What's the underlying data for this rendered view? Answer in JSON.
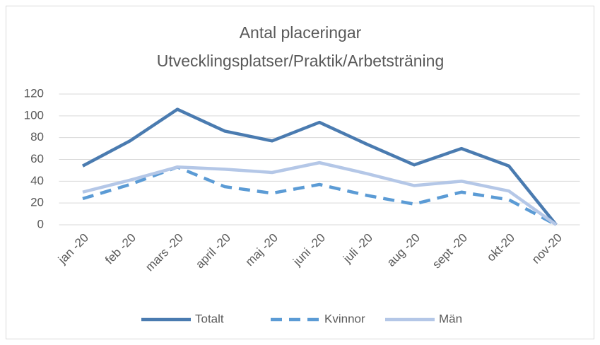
{
  "chart_data": {
    "type": "line",
    "title": [
      "Antal placeringar",
      "Utvecklingsplatser/Praktik/Arbetsträning"
    ],
    "categories": [
      "jan -20",
      "feb -20",
      "mars -20",
      "april -20",
      "maj -20",
      "juni -20",
      "juli -20",
      "aug -20",
      "sept -20",
      "okt-20",
      "nov-20"
    ],
    "series": [
      {
        "name": "Totalt",
        "color": "#4a7bb0",
        "dashed": false,
        "values": [
          54,
          77,
          106,
          86,
          77,
          94,
          74,
          55,
          70,
          54,
          0
        ]
      },
      {
        "name": "Kvinnor",
        "color": "#5b9bd5",
        "dashed": true,
        "values": [
          24,
          37,
          53,
          35,
          29,
          37,
          27,
          19,
          30,
          23,
          0
        ]
      },
      {
        "name": "Män",
        "color": "#b4c7e7",
        "dashed": false,
        "values": [
          30,
          41,
          53,
          51,
          48,
          57,
          47,
          36,
          40,
          31,
          0
        ]
      }
    ],
    "ylim": [
      0,
      120
    ],
    "yticks": [
      0,
      20,
      40,
      60,
      80,
      100,
      120
    ],
    "grid": true,
    "legend": "bottom"
  }
}
